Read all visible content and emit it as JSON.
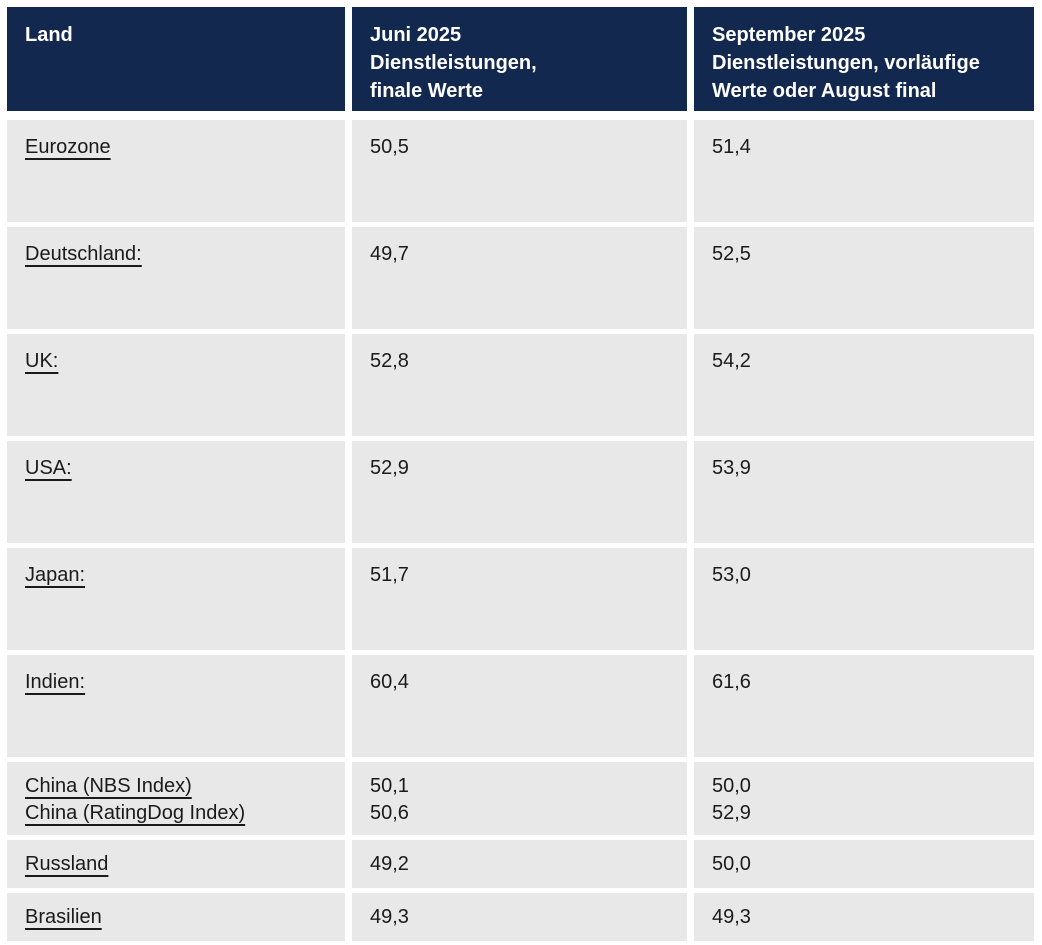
{
  "chart_data": {
    "type": "table",
    "title": "",
    "columns": [
      "Land",
      "Juni 2025 Dienstleistungen, finale Werte",
      "September 2025 Dienstleistungen, vorläufige Werte oder August final"
    ],
    "rows": [
      [
        "Eurozone",
        "50,5",
        "51,4"
      ],
      [
        "Deutschland:",
        "49,7",
        "52,5"
      ],
      [
        "UK:",
        "52,8",
        "54,2"
      ],
      [
        "USA:",
        "52,9",
        "53,9"
      ],
      [
        "Japan:",
        "51,7",
        "53,0"
      ],
      [
        "Indien:",
        "60,4",
        "61,6"
      ],
      [
        "China (NBS Index)",
        "50,1",
        "50,0"
      ],
      [
        "China (RatingDog Index)",
        "50,6",
        "52,9"
      ],
      [
        "Russland",
        "49,2",
        "50,0"
      ],
      [
        "Brasilien",
        "49,3",
        "49,3"
      ]
    ]
  },
  "colors": {
    "header_bg": "#13284e",
    "header_text": "#ffffff",
    "row_bg": "#e8e8e8",
    "body_text": "#1a1a1a"
  },
  "header": {
    "land": "Land",
    "juni_lines": [
      "Juni 2025",
      "Dienstleistungen,",
      "finale Werte"
    ],
    "september_lines": [
      "September 2025",
      "Dienstleistungen, vorläufige",
      "Werte oder August final"
    ]
  },
  "rows": [
    {
      "land": "Eurozone",
      "juni": "50,5",
      "september": "51,4"
    },
    {
      "land": "Deutschland:",
      "juni": "49,7",
      "september": "52,5"
    },
    {
      "land": "UK:",
      "juni": "52,8",
      "september": "54,2"
    },
    {
      "land": "USA:",
      "juni": "52,9",
      "september": "53,9"
    },
    {
      "land": "Japan:",
      "juni": "51,7",
      "september": "53,0"
    },
    {
      "land": "Indien:",
      "juni": "60,4",
      "september": "61,6"
    },
    {
      "land": "China (NBS Index)",
      "land2": "China (RatingDog Index)",
      "juni": "50,1",
      "juni2": "50,6",
      "september": "50,0",
      "september2": "52,9"
    },
    {
      "land": "Russland",
      "juni": "49,2",
      "september": "50,0"
    },
    {
      "land": "Brasilien",
      "juni": "49,3",
      "september": "49,3"
    }
  ]
}
